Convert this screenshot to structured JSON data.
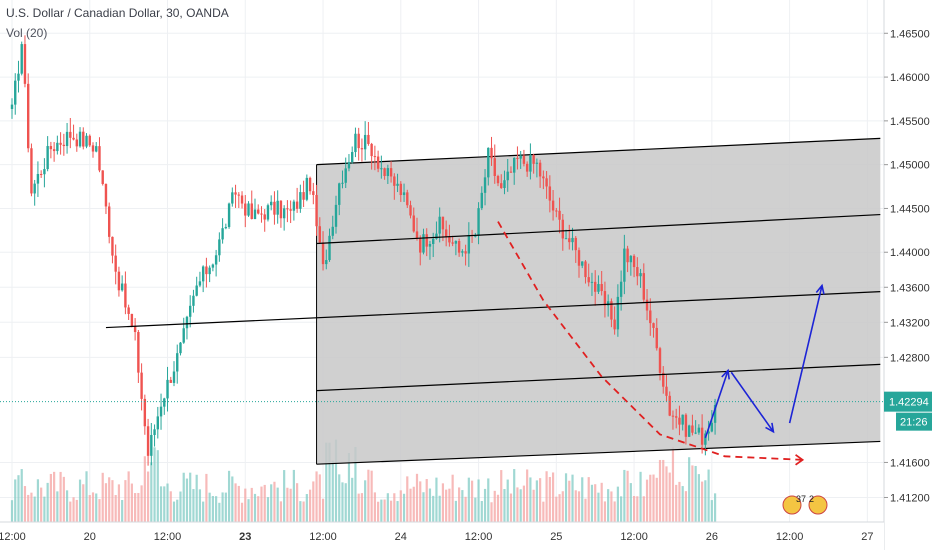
{
  "header": {
    "symbol_line": "U.S. Dollar / Canadian Dollar, 30, OANDA",
    "volume_label": "Vol (20)"
  },
  "colors": {
    "up": "#26a69a",
    "down": "#ef5350",
    "vol_up": "#80cbc4",
    "vol_down": "#f4a3a1",
    "channel_fill": "#c8c8c8",
    "price_badge": "#26a69a",
    "arrow_blue": "#1c24d6",
    "projection_red": "#e02020"
  },
  "last_price_badge": "1.42294",
  "countdown_badge": "21:26",
  "footer_badge": {
    "count_a": "37",
    "count_b": "2"
  },
  "chart_data": {
    "type": "candlestick",
    "symbol": "USDCAD",
    "timeframe": "30",
    "broker": "OANDA",
    "ylim": [
      1.4092,
      1.4688
    ],
    "y_ticks": [
      {
        "value": 1.465,
        "label": "1.46500"
      },
      {
        "value": 1.46,
        "label": "1.46000"
      },
      {
        "value": 1.455,
        "label": "1.45500"
      },
      {
        "value": 1.45,
        "label": "1.45000"
      },
      {
        "value": 1.445,
        "label": "1.44500"
      },
      {
        "value": 1.44,
        "label": "1.44000"
      },
      {
        "value": 1.436,
        "label": "1.43600"
      },
      {
        "value": 1.432,
        "label": "1.43200"
      },
      {
        "value": 1.428,
        "label": "1.42800"
      },
      {
        "value": 1.416,
        "label": "1.41600"
      },
      {
        "value": 1.412,
        "label": "1.41200"
      }
    ],
    "x_ticks": [
      {
        "bar": 0,
        "label": "12:00",
        "bold": false
      },
      {
        "bar": 24,
        "label": "20",
        "bold": false
      },
      {
        "bar": 48,
        "label": "12:00",
        "bold": false
      },
      {
        "bar": 72,
        "label": "23",
        "bold": true
      },
      {
        "bar": 96,
        "label": "12:00",
        "bold": false
      },
      {
        "bar": 120,
        "label": "24",
        "bold": false
      },
      {
        "bar": 144,
        "label": "12:00",
        "bold": false
      },
      {
        "bar": 168,
        "label": "25",
        "bold": false
      },
      {
        "bar": 192,
        "label": "12:00",
        "bold": false
      },
      {
        "bar": 216,
        "label": "26",
        "bold": false
      },
      {
        "bar": 240,
        "label": "12:00",
        "bold": false
      },
      {
        "bar": 264,
        "label": "27",
        "bold": false
      }
    ],
    "bar_count_visible": 268,
    "anchors": [
      [
        0,
        1.456
      ],
      [
        3,
        1.464
      ],
      [
        6,
        1.447
      ],
      [
        12,
        1.452
      ],
      [
        18,
        1.4535
      ],
      [
        26,
        1.452
      ],
      [
        32,
        1.438
      ],
      [
        38,
        1.43
      ],
      [
        42,
        1.417
      ],
      [
        46,
        1.423
      ],
      [
        52,
        1.429
      ],
      [
        57,
        1.436
      ],
      [
        63,
        1.44
      ],
      [
        69,
        1.447
      ],
      [
        74,
        1.444
      ],
      [
        80,
        1.445
      ],
      [
        86,
        1.4445
      ],
      [
        92,
        1.448
      ],
      [
        96,
        1.438
      ],
      [
        101,
        1.448
      ],
      [
        106,
        1.453
      ],
      [
        111,
        1.452
      ],
      [
        115,
        1.449
      ],
      [
        120,
        1.447
      ],
      [
        126,
        1.441
      ],
      [
        132,
        1.443
      ],
      [
        138,
        1.44
      ],
      [
        143,
        1.442
      ],
      [
        147,
        1.451
      ],
      [
        151,
        1.447
      ],
      [
        156,
        1.4505
      ],
      [
        162,
        1.45
      ],
      [
        168,
        1.444
      ],
      [
        174,
        1.44
      ],
      [
        180,
        1.436
      ],
      [
        186,
        1.432
      ],
      [
        189,
        1.44
      ],
      [
        194,
        1.437
      ],
      [
        199,
        1.429
      ],
      [
        203,
        1.422
      ],
      [
        208,
        1.42
      ],
      [
        213,
        1.419
      ],
      [
        217,
        1.4215
      ]
    ],
    "volume_ylim": [
      0,
      60
    ],
    "annotations": {
      "channel": {
        "from": {
          "bar": 94,
          "price": 1.45
        },
        "to": {
          "bar": 268,
          "price": 1.453
        },
        "lower_from": {
          "bar": 94,
          "price": 1.4158
        },
        "lower_to": {
          "bar": 268,
          "price": 1.4184
        }
      },
      "inner_lines": [
        {
          "from": {
            "bar": 94,
            "price": 1.441
          },
          "to": {
            "bar": 268,
            "price": 1.4443
          }
        },
        {
          "from": {
            "bar": 29,
            "price": 1.4314
          },
          "to": {
            "bar": 268,
            "price": 1.4355
          }
        },
        {
          "from": {
            "bar": 94,
            "price": 1.4242
          },
          "to": {
            "bar": 268,
            "price": 1.4272
          }
        }
      ],
      "last_price_line": 1.42294,
      "blue_arrow_path": [
        {
          "bar": 214,
          "price": 1.4188
        },
        {
          "bar": 221,
          "price": 1.4265
        },
        {
          "bar": 222,
          "price": 1.4263
        },
        {
          "bar": 235,
          "price": 1.4195
        },
        {
          "bar": 240,
          "price": 1.4205
        },
        {
          "bar": 250,
          "price": 1.4362
        }
      ],
      "red_projection_path": [
        {
          "bar": 150,
          "price": 1.4435
        },
        {
          "bar": 164,
          "price": 1.4345
        },
        {
          "bar": 182,
          "price": 1.4258
        },
        {
          "bar": 200,
          "price": 1.4192
        },
        {
          "bar": 220,
          "price": 1.4167
        },
        {
          "bar": 244,
          "price": 1.4163
        }
      ]
    }
  }
}
